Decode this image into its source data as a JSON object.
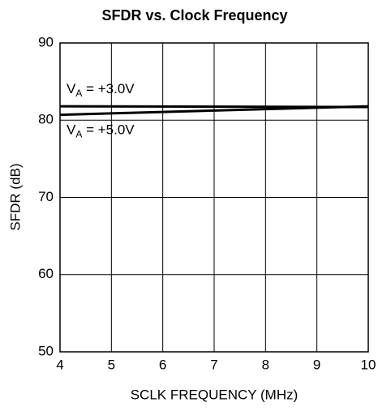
{
  "chart_data": {
    "type": "line",
    "title": "SFDR vs. Clock Frequency",
    "x_label": "SCLK FREQUENCY (MHz)",
    "y_label": "SFDR (dB)",
    "x": [
      4,
      10
    ],
    "series": [
      {
        "name": [
          "V",
          "A",
          " = +3.0V"
        ],
        "color": "#000000",
        "values": [
          81.8,
          81.7
        ]
      },
      {
        "name": [
          "V",
          "A",
          " = +5.0V"
        ],
        "color": "#000000",
        "values": [
          80.7,
          81.8
        ]
      }
    ],
    "xlim": [
      4,
      10
    ],
    "xticks": [
      4,
      5,
      6,
      7,
      8,
      9,
      10
    ],
    "ylim": [
      50,
      90
    ],
    "yticks": [
      50,
      60,
      70,
      80,
      90
    ],
    "grid": true
  }
}
